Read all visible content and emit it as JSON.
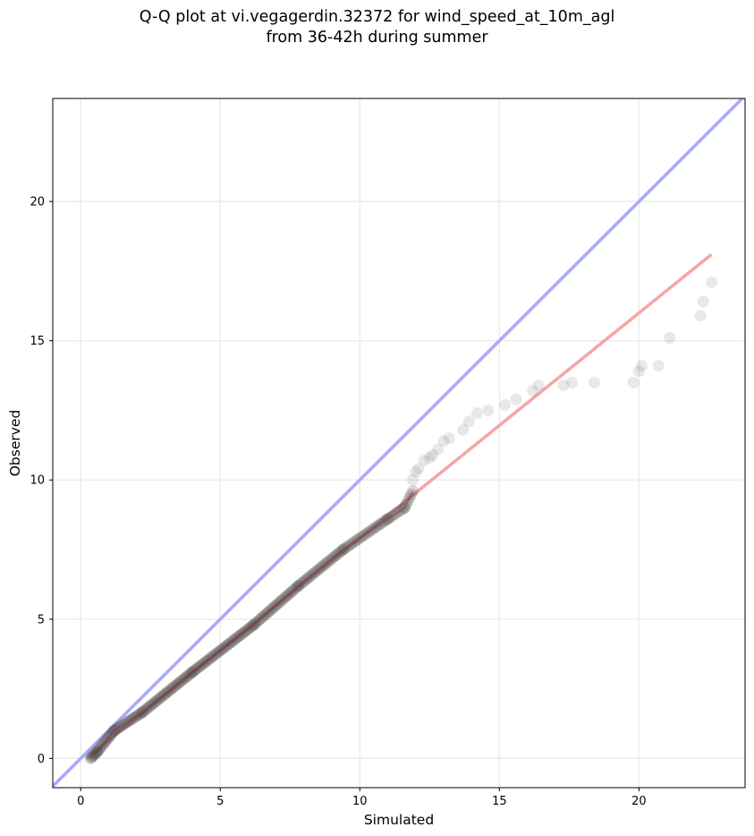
{
  "chart_data": {
    "type": "scatter",
    "title": "Q-Q plot at vi.vegagerdin.32372 for wind_speed_at_10m_agl",
    "subtitle": "from 36-42h during summer",
    "xlabel": "Simulated",
    "ylabel": "Observed",
    "xlim": [
      -1.0,
      23.8
    ],
    "ylim": [
      -1.05,
      23.7
    ],
    "xticks": [
      0,
      5,
      10,
      15,
      20
    ],
    "yticks": [
      0,
      5,
      10,
      15,
      20
    ],
    "grid": true,
    "colors": {
      "points": "#4a4a4a",
      "identity_line": "#a8acf5",
      "fit_line": "#f4a7a7",
      "grid": "#ebebeb"
    },
    "reference_lines": [
      {
        "kind": "identity",
        "x": [
          -1.0,
          23.8
        ],
        "y": [
          -1.0,
          23.8
        ]
      },
      {
        "kind": "fit",
        "x": [
          0.2,
          22.6
        ],
        "y": [
          0.0,
          18.1
        ]
      }
    ],
    "dense_segments": [
      {
        "x0": 0.35,
        "y0": 0.0,
        "x1": 0.6,
        "y1": 0.25,
        "n": 8
      },
      {
        "x0": 0.6,
        "y0": 0.25,
        "x1": 1.2,
        "y1": 1.0,
        "n": 14
      },
      {
        "x0": 1.2,
        "y0": 1.0,
        "x1": 2.2,
        "y1": 1.65,
        "n": 18
      },
      {
        "x0": 2.2,
        "y0": 1.65,
        "x1": 4.0,
        "y1": 3.1,
        "n": 34
      },
      {
        "x0": 4.0,
        "y0": 3.1,
        "x1": 6.2,
        "y1": 4.8,
        "n": 40
      },
      {
        "x0": 6.2,
        "y0": 4.8,
        "x1": 7.8,
        "y1": 6.2,
        "n": 28
      },
      {
        "x0": 7.8,
        "y0": 6.2,
        "x1": 9.4,
        "y1": 7.5,
        "n": 26
      },
      {
        "x0": 9.4,
        "y0": 7.5,
        "x1": 11.0,
        "y1": 8.6,
        "n": 22
      },
      {
        "x0": 11.0,
        "y0": 8.6,
        "x1": 11.6,
        "y1": 9.0,
        "n": 8
      },
      {
        "x0": 11.6,
        "y0": 9.0,
        "x1": 11.9,
        "y1": 9.6,
        "n": 6
      }
    ],
    "tail_points": [
      {
        "x": 11.9,
        "y": 10.0
      },
      {
        "x": 12.0,
        "y": 10.3
      },
      {
        "x": 12.1,
        "y": 10.4
      },
      {
        "x": 12.3,
        "y": 10.7
      },
      {
        "x": 12.5,
        "y": 10.8
      },
      {
        "x": 12.6,
        "y": 10.9
      },
      {
        "x": 12.8,
        "y": 11.1
      },
      {
        "x": 13.0,
        "y": 11.4
      },
      {
        "x": 13.2,
        "y": 11.5
      },
      {
        "x": 13.7,
        "y": 11.8
      },
      {
        "x": 13.9,
        "y": 12.1
      },
      {
        "x": 14.2,
        "y": 12.4
      },
      {
        "x": 14.6,
        "y": 12.5
      },
      {
        "x": 15.2,
        "y": 12.7
      },
      {
        "x": 15.6,
        "y": 12.9
      },
      {
        "x": 16.2,
        "y": 13.2
      },
      {
        "x": 16.4,
        "y": 13.4
      },
      {
        "x": 17.3,
        "y": 13.4
      },
      {
        "x": 17.6,
        "y": 13.5
      },
      {
        "x": 18.4,
        "y": 13.5
      },
      {
        "x": 19.8,
        "y": 13.5
      },
      {
        "x": 20.0,
        "y": 13.9
      },
      {
        "x": 20.1,
        "y": 14.1
      },
      {
        "x": 20.7,
        "y": 14.1
      },
      {
        "x": 21.1,
        "y": 15.1
      },
      {
        "x": 22.2,
        "y": 15.9
      },
      {
        "x": 22.3,
        "y": 16.4
      },
      {
        "x": 22.6,
        "y": 17.1
      }
    ]
  }
}
